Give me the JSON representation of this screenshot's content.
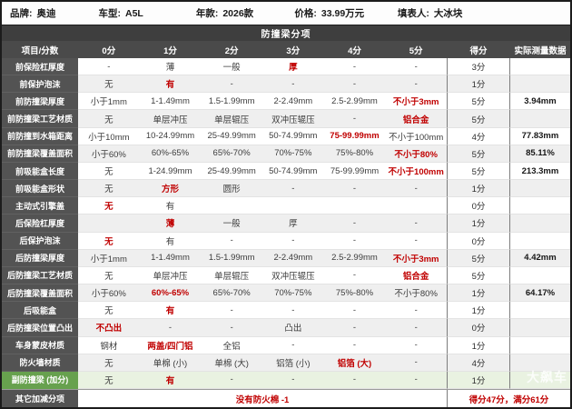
{
  "info_bar": [
    {
      "label": "品牌:",
      "value": "奥迪"
    },
    {
      "label": "车型:",
      "value": "A5L"
    },
    {
      "label": "年款:",
      "value": "2026款"
    },
    {
      "label": "价格:",
      "value": "33.99万元"
    },
    {
      "label": "填表人:",
      "value": "大冰块"
    }
  ],
  "section_title": "防撞梁分项",
  "table": {
    "columns": [
      "项目/分数",
      "0分",
      "1分",
      "2分",
      "3分",
      "4分",
      "5分",
      "得分",
      "实际测量数据"
    ],
    "rows": [
      {
        "label": "前保险杠厚度",
        "cells": [
          "-",
          "薄",
          "一般",
          "厚",
          "-",
          "-"
        ],
        "selected": 3,
        "score": "3分",
        "measured": ""
      },
      {
        "label": "前保护泡沫",
        "cells": [
          "无",
          "有",
          "-",
          "-",
          "-",
          "-"
        ],
        "selected": 1,
        "score": "1分",
        "measured": ""
      },
      {
        "label": "前防撞梁厚度",
        "cells": [
          "小于1mm",
          "1-1.49mm",
          "1.5-1.99mm",
          "2-2.49mm",
          "2.5-2.99mm",
          "不小于3mm"
        ],
        "selected": 5,
        "score": "5分",
        "measured": "3.94mm"
      },
      {
        "label": "前防撞梁工艺材质",
        "cells": [
          "无",
          "单层冲压",
          "单层辊压",
          "双冲压辊压",
          "-",
          "铝合金"
        ],
        "selected": 5,
        "score": "5分",
        "measured": ""
      },
      {
        "label": "前防撞到水箱距离",
        "cells": [
          "小于10mm",
          "10-24.99mm",
          "25-49.99mm",
          "50-74.99mm",
          "75-99.99mm",
          "不小于100mm"
        ],
        "selected": 4,
        "score": "4分",
        "measured": "77.83mm"
      },
      {
        "label": "前防撞梁覆盖面积",
        "cells": [
          "小于60%",
          "60%-65%",
          "65%-70%",
          "70%-75%",
          "75%-80%",
          "不小于80%"
        ],
        "selected": 5,
        "score": "5分",
        "measured": "85.11%"
      },
      {
        "label": "前吸能盒长度",
        "cells": [
          "无",
          "1-24.99mm",
          "25-49.99mm",
          "50-74.99mm",
          "75-99.99mm",
          "不小于100mm"
        ],
        "selected": 5,
        "score": "5分",
        "measured": "213.3mm"
      },
      {
        "label": "前吸能盒形状",
        "cells": [
          "无",
          "方形",
          "圆形",
          "-",
          "-",
          "-"
        ],
        "selected": 1,
        "score": "1分",
        "measured": ""
      },
      {
        "label": "主动式引擎盖",
        "cells": [
          "无",
          "有",
          "",
          "",
          "",
          ""
        ],
        "selected": 0,
        "score": "0分",
        "measured": ""
      },
      {
        "label": "后保险杠厚度",
        "cells": [
          "",
          "薄",
          "一般",
          "厚",
          "-",
          "-"
        ],
        "selected": 1,
        "score": "1分",
        "measured": ""
      },
      {
        "label": "后保护泡沫",
        "cells": [
          "无",
          "有",
          "-",
          "-",
          "-",
          "-"
        ],
        "selected": 0,
        "score": "0分",
        "measured": ""
      },
      {
        "label": "后防撞梁厚度",
        "cells": [
          "小于1mm",
          "1-1.49mm",
          "1.5-1.99mm",
          "2-2.49mm",
          "2.5-2.99mm",
          "不小于3mm"
        ],
        "selected": 5,
        "score": "5分",
        "measured": "4.42mm"
      },
      {
        "label": "后防撞梁工艺材质",
        "cells": [
          "无",
          "单层冲压",
          "单层辊压",
          "双冲压辊压",
          "-",
          "铝合金"
        ],
        "selected": 5,
        "score": "5分",
        "measured": ""
      },
      {
        "label": "后防撞梁覆盖面积",
        "cells": [
          "小于60%",
          "60%-65%",
          "65%-70%",
          "70%-75%",
          "75%-80%",
          "不小于80%"
        ],
        "selected": 1,
        "score": "1分",
        "measured": "64.17%"
      },
      {
        "label": "后吸能盒",
        "cells": [
          "无",
          "有",
          "-",
          "-",
          "-",
          "-"
        ],
        "selected": 1,
        "score": "1分",
        "measured": ""
      },
      {
        "label": "后防撞梁位置凸出",
        "cells": [
          "不凸出",
          "-",
          "-",
          "凸出",
          "-",
          "-"
        ],
        "selected": 0,
        "score": "0分",
        "measured": ""
      },
      {
        "label": "车身蒙皮材质",
        "cells": [
          "钢材",
          "两盖/四门铝",
          "全铝",
          "-",
          "-",
          "-"
        ],
        "selected": 1,
        "score": "1分",
        "measured": ""
      },
      {
        "label": "防火墙材质",
        "cells": [
          "无",
          "单棉 (小)",
          "单棉 (大)",
          "铝箔 (小)",
          "铝箔 (大)",
          "-"
        ],
        "selected": 4,
        "score": "4分",
        "measured": ""
      },
      {
        "label": "副防撞梁 (加分)",
        "cells": [
          "无",
          "有",
          "-",
          "-",
          "-",
          "-"
        ],
        "selected": 1,
        "score": "1分",
        "measured": "",
        "highlight": "green"
      }
    ],
    "footer": {
      "label": "其它加减分项",
      "note": "没有防火棉 -1",
      "summary": "得分47分，满分61分"
    }
  },
  "watermark": "大飙车",
  "colors": {
    "accent_red": "#c00000",
    "header_dark": "#4a4a4a",
    "title_dark": "#3e3e3e",
    "label_dark": "#535353",
    "bonus_green": "#67a14e",
    "bonus_row_bg": "#e9f2e1",
    "stripe_gray": "#efefef"
  }
}
